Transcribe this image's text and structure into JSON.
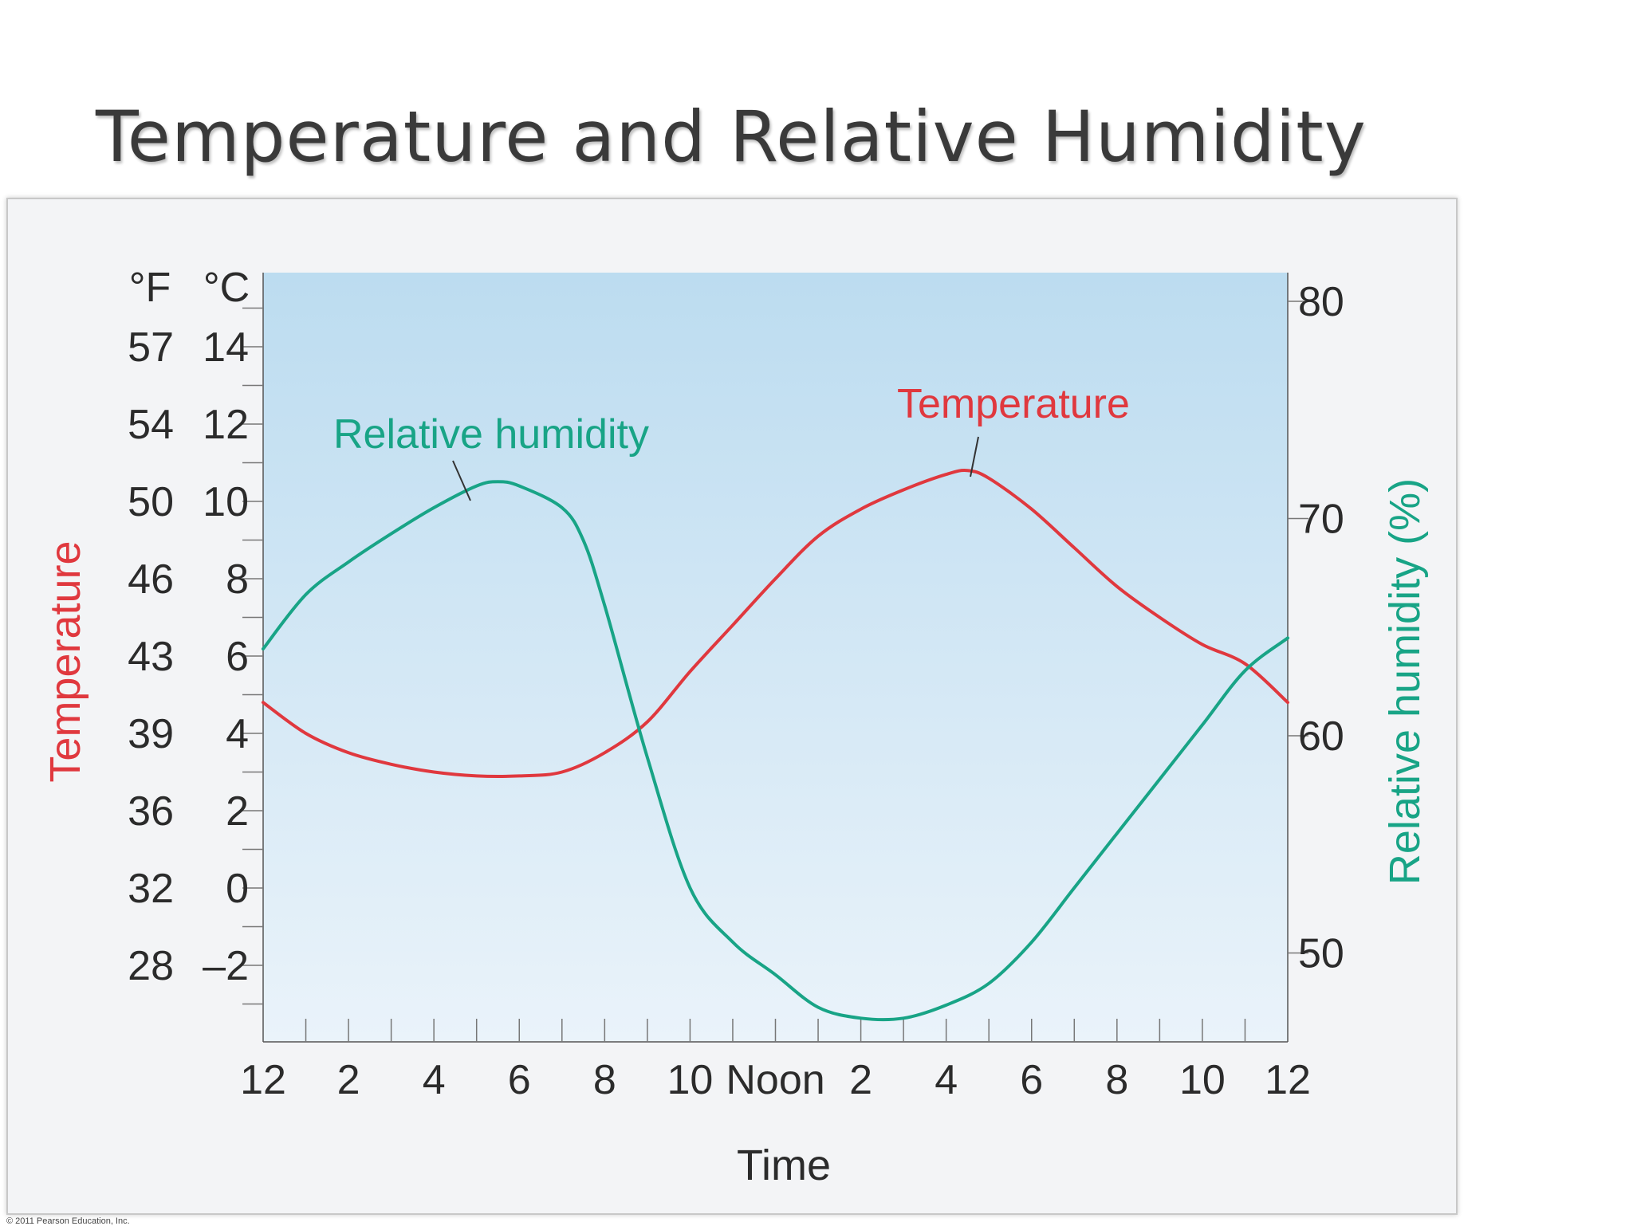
{
  "slide": {
    "title": "Temperature and Relative Humidity",
    "copyright": "© 2011 Pearson Education, Inc."
  },
  "colors": {
    "temperature": "#e0383e",
    "humidity": "#18a486",
    "plot_top": "#bcdcf0",
    "plot_bottom": "#eaf3fa",
    "text": "#2b2b2b"
  },
  "chart_data": {
    "type": "line",
    "title": "Temperature and Relative Humidity",
    "xlabel": "Time",
    "ylabel_left": "Temperature",
    "ylabel_right": "Relative humidity (%)",
    "left_unit_headers": [
      "°F",
      "°C"
    ],
    "x_tick_labels": [
      "12",
      "2",
      "4",
      "6",
      "8",
      "10",
      "Noon",
      "2",
      "4",
      "6",
      "8",
      "10",
      "12"
    ],
    "x_hours_range": [
      0,
      24
    ],
    "left_axis": {
      "unit": "°C",
      "range": [
        -4,
        16
      ],
      "ticks_c": [
        "14",
        "12",
        "10",
        "8",
        "6",
        "4",
        "2",
        "0",
        "–2"
      ],
      "ticks_f": [
        "57",
        "54",
        "50",
        "46",
        "43",
        "39",
        "36",
        "32",
        "28"
      ]
    },
    "right_axis": {
      "unit": "%",
      "range": [
        46,
        80.5
      ],
      "ticks": [
        "80",
        "70",
        "60",
        "50"
      ]
    },
    "grid": false,
    "series": [
      {
        "name": "Temperature",
        "axis": "left",
        "x": [
          0,
          1,
          2,
          3,
          4,
          5,
          6,
          7,
          8,
          9,
          10,
          11,
          12,
          13,
          14,
          15,
          16,
          16.5,
          17,
          18,
          19,
          20,
          21,
          22,
          23,
          24
        ],
        "y": [
          4.8,
          4.0,
          3.5,
          3.2,
          3.0,
          2.9,
          2.9,
          3.0,
          3.5,
          4.3,
          5.6,
          6.8,
          8.0,
          9.1,
          9.8,
          10.3,
          10.7,
          10.8,
          10.6,
          9.8,
          8.8,
          7.8,
          7.0,
          6.3,
          5.8,
          4.8
        ]
      },
      {
        "name": "Relative humidity",
        "axis": "right",
        "x": [
          0,
          1,
          2,
          3,
          4,
          5,
          5.5,
          6,
          7,
          7.5,
          8,
          9,
          10,
          11,
          12,
          13,
          14,
          15,
          16,
          17,
          18,
          19,
          20,
          21,
          22,
          23,
          24
        ],
        "y": [
          64,
          66.5,
          68,
          69.3,
          70.5,
          71.5,
          71.7,
          71.5,
          70.5,
          69,
          66,
          59,
          53,
          50.5,
          49,
          47.5,
          47,
          47,
          47.6,
          48.6,
          50.5,
          53,
          55.5,
          58,
          60.5,
          63,
          64.5
        ]
      }
    ],
    "annotations": [
      "Relative humidity",
      "Temperature"
    ]
  }
}
